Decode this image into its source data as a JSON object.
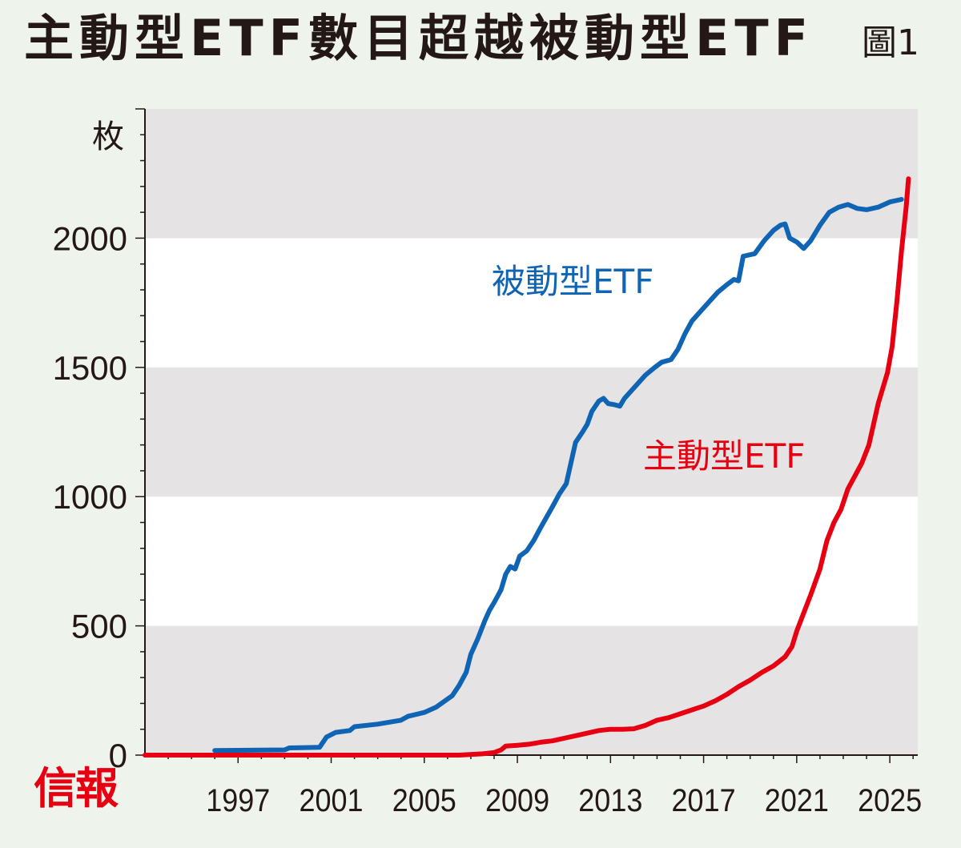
{
  "header": {
    "title": "主動型ETF數目超越被動型ETF",
    "figure_label": "圖1"
  },
  "brand": "信報",
  "colors": {
    "background": "#eef3ec",
    "band_dark": "#e5e3e4",
    "band_light": "#ffffff",
    "passive": "#0f64b4",
    "active": "#e60012",
    "axis": "#231815"
  },
  "chart_data": {
    "type": "line",
    "title": "主動型ETF數目超越被動型ETF",
    "ylabel": "枚",
    "xlabel": "",
    "xlim": [
      1993,
      2026.2
    ],
    "ylim": [
      0,
      2500
    ],
    "y_ticks": [
      0,
      500,
      1000,
      1500,
      2000
    ],
    "y_tick_labels": [
      "0",
      "500",
      "1000",
      "1500",
      "2000"
    ],
    "x_tick_labels": [
      "1997",
      "2001",
      "2005",
      "2009",
      "2013",
      "2017",
      "2021",
      "2025"
    ],
    "x_ticks": [
      1997,
      2001,
      2005,
      2009,
      2013,
      2017,
      2021,
      2025
    ],
    "grid": "horizontal alternating bands",
    "series": [
      {
        "name": "被動型ETF",
        "color": "#0f64b4",
        "points": [
          [
            1996.0,
            18
          ],
          [
            1999.0,
            20
          ],
          [
            1999.2,
            28
          ],
          [
            2000.5,
            30
          ],
          [
            2000.8,
            70
          ],
          [
            2001.2,
            88
          ],
          [
            2001.8,
            95
          ],
          [
            2002.0,
            110
          ],
          [
            2003.0,
            120
          ],
          [
            2004.0,
            135
          ],
          [
            2004.3,
            150
          ],
          [
            2005.0,
            165
          ],
          [
            2005.5,
            185
          ],
          [
            2006.2,
            230
          ],
          [
            2006.5,
            270
          ],
          [
            2006.8,
            320
          ],
          [
            2007.0,
            390
          ],
          [
            2007.3,
            450
          ],
          [
            2007.6,
            520
          ],
          [
            2007.8,
            560
          ],
          [
            2008.0,
            590
          ],
          [
            2008.3,
            640
          ],
          [
            2008.5,
            700
          ],
          [
            2008.7,
            730
          ],
          [
            2008.9,
            720
          ],
          [
            2009.1,
            770
          ],
          [
            2009.4,
            790
          ],
          [
            2009.7,
            830
          ],
          [
            2010.0,
            880
          ],
          [
            2010.5,
            960
          ],
          [
            2010.8,
            1010
          ],
          [
            2011.1,
            1050
          ],
          [
            2011.3,
            1130
          ],
          [
            2011.5,
            1210
          ],
          [
            2011.8,
            1250
          ],
          [
            2012.0,
            1280
          ],
          [
            2012.2,
            1330
          ],
          [
            2012.5,
            1370
          ],
          [
            2012.7,
            1380
          ],
          [
            2012.9,
            1360
          ],
          [
            2013.2,
            1355
          ],
          [
            2013.4,
            1350
          ],
          [
            2013.6,
            1380
          ],
          [
            2014.0,
            1420
          ],
          [
            2014.5,
            1470
          ],
          [
            2014.9,
            1500
          ],
          [
            2015.2,
            1520
          ],
          [
            2015.6,
            1530
          ],
          [
            2015.9,
            1570
          ],
          [
            2016.2,
            1630
          ],
          [
            2016.5,
            1680
          ],
          [
            2016.9,
            1720
          ],
          [
            2017.3,
            1760
          ],
          [
            2017.6,
            1790
          ],
          [
            2018.0,
            1820
          ],
          [
            2018.3,
            1840
          ],
          [
            2018.5,
            1835
          ],
          [
            2018.7,
            1930
          ],
          [
            2019.2,
            1940
          ],
          [
            2019.6,
            1990
          ],
          [
            2020.0,
            2030
          ],
          [
            2020.3,
            2050
          ],
          [
            2020.5,
            2055
          ],
          [
            2020.7,
            2000
          ],
          [
            2021.0,
            1985
          ],
          [
            2021.3,
            1960
          ],
          [
            2021.6,
            1990
          ],
          [
            2022.0,
            2050
          ],
          [
            2022.4,
            2100
          ],
          [
            2022.8,
            2120
          ],
          [
            2023.2,
            2130
          ],
          [
            2023.6,
            2115
          ],
          [
            2024.0,
            2110
          ],
          [
            2024.5,
            2120
          ],
          [
            2025.0,
            2140
          ],
          [
            2025.5,
            2150
          ]
        ]
      },
      {
        "name": "主動型ETF",
        "color": "#e60012",
        "points": [
          [
            1993.0,
            0
          ],
          [
            2006.5,
            0
          ],
          [
            2007.5,
            5
          ],
          [
            2008.0,
            10
          ],
          [
            2008.3,
            20
          ],
          [
            2008.5,
            35
          ],
          [
            2009.0,
            38
          ],
          [
            2009.5,
            42
          ],
          [
            2010.0,
            50
          ],
          [
            2010.5,
            55
          ],
          [
            2011.0,
            65
          ],
          [
            2011.5,
            75
          ],
          [
            2012.0,
            85
          ],
          [
            2012.5,
            95
          ],
          [
            2013.0,
            100
          ],
          [
            2013.5,
            100
          ],
          [
            2014.0,
            102
          ],
          [
            2014.5,
            115
          ],
          [
            2015.0,
            135
          ],
          [
            2015.5,
            145
          ],
          [
            2016.0,
            160
          ],
          [
            2016.5,
            175
          ],
          [
            2017.0,
            190
          ],
          [
            2017.5,
            210
          ],
          [
            2018.0,
            235
          ],
          [
            2018.5,
            265
          ],
          [
            2019.0,
            290
          ],
          [
            2019.5,
            320
          ],
          [
            2020.0,
            345
          ],
          [
            2020.5,
            380
          ],
          [
            2020.8,
            420
          ],
          [
            2021.0,
            480
          ],
          [
            2021.3,
            550
          ],
          [
            2021.6,
            620
          ],
          [
            2022.0,
            720
          ],
          [
            2022.3,
            830
          ],
          [
            2022.6,
            900
          ],
          [
            2022.9,
            950
          ],
          [
            2023.2,
            1030
          ],
          [
            2023.5,
            1080
          ],
          [
            2023.8,
            1130
          ],
          [
            2024.1,
            1200
          ],
          [
            2024.3,
            1280
          ],
          [
            2024.5,
            1360
          ],
          [
            2024.7,
            1420
          ],
          [
            2024.9,
            1480
          ],
          [
            2025.1,
            1580
          ],
          [
            2025.3,
            1750
          ],
          [
            2025.5,
            1950
          ],
          [
            2025.7,
            2120
          ],
          [
            2025.8,
            2230
          ]
        ]
      }
    ]
  }
}
